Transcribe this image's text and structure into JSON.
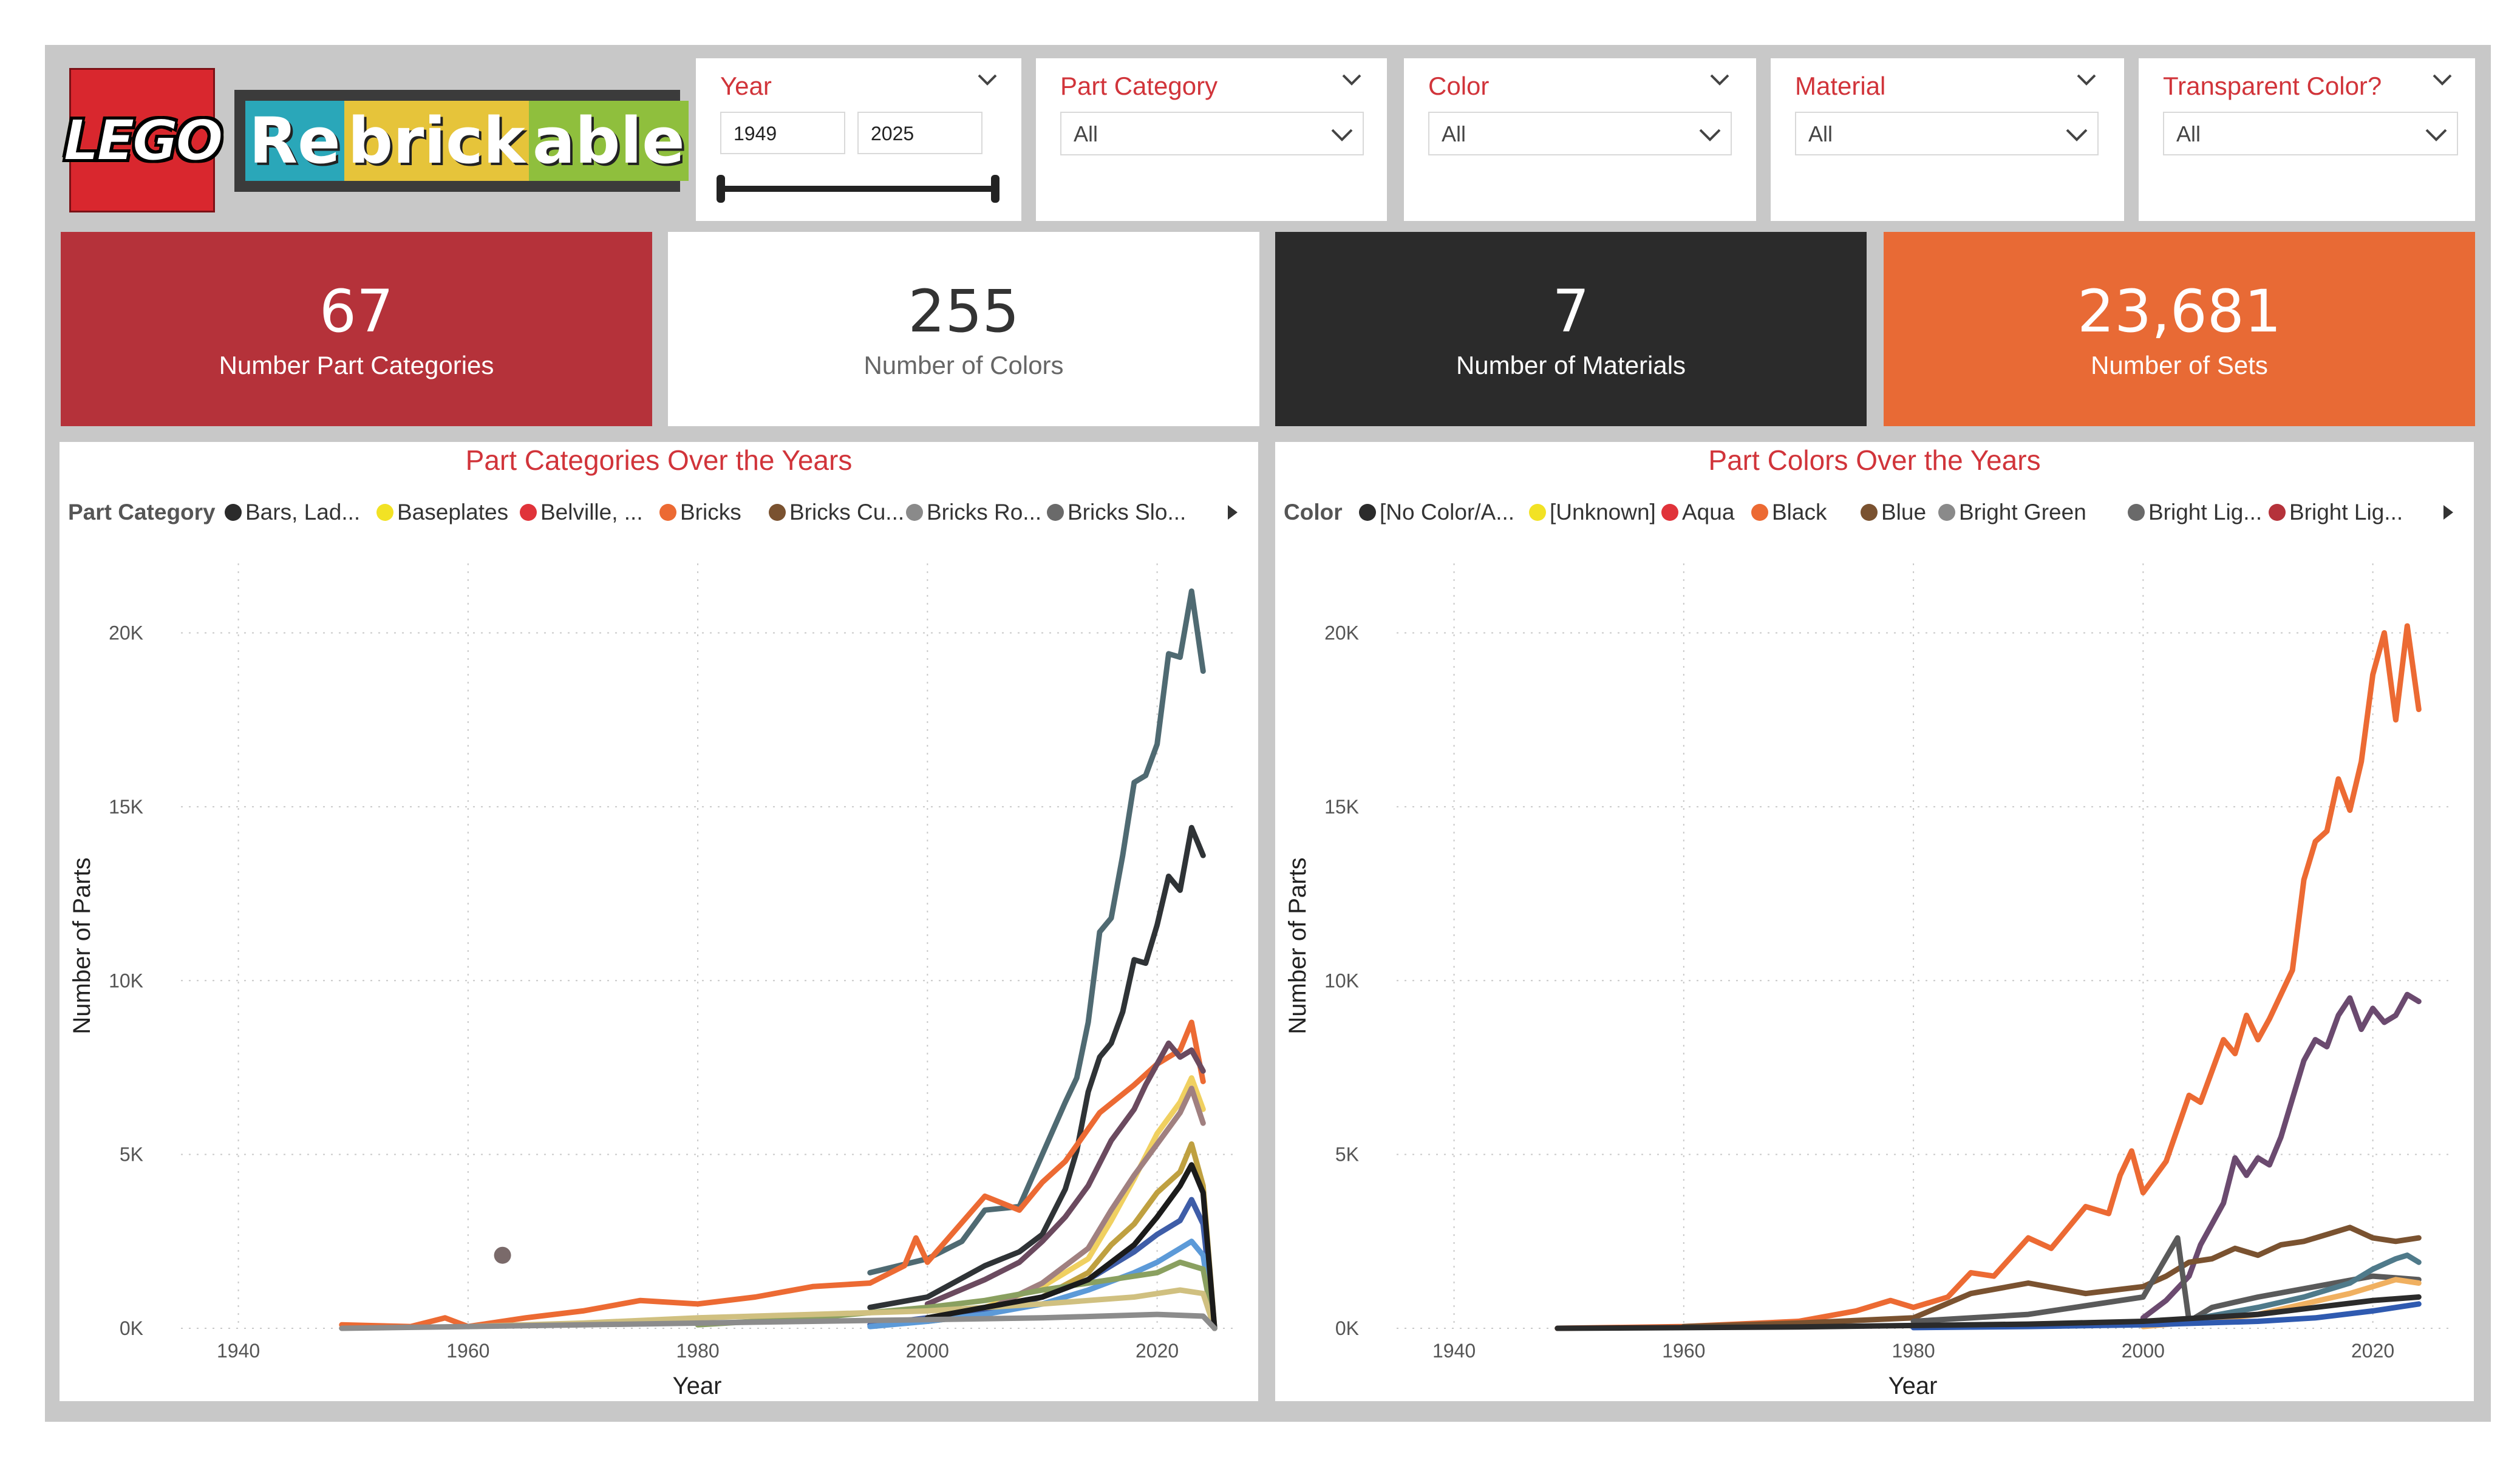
{
  "logos": {
    "lego_text": "LEGO",
    "rebrickable_parts": [
      "Re",
      "brick",
      "able"
    ]
  },
  "filters": {
    "year": {
      "title": "Year",
      "from": "1949",
      "to": "2025"
    },
    "part_category": {
      "title": "Part Category",
      "selected": "All"
    },
    "color": {
      "title": "Color",
      "selected": "All"
    },
    "material": {
      "title": "Material",
      "selected": "All"
    },
    "transparent": {
      "title": "Transparent Color?",
      "selected": "All"
    }
  },
  "kpis": [
    {
      "value": "67",
      "label": "Number Part Categories",
      "bg": "#b5323a",
      "fg": "#ffffff"
    },
    {
      "value": "255",
      "label": "Number of Colors",
      "bg": "#ffffff",
      "fg": "#333333"
    },
    {
      "value": "7",
      "label": "Number of Materials",
      "bg": "#2b2b2b",
      "fg": "#ffffff"
    },
    {
      "value": "23,681",
      "label": "Number of Sets",
      "bg": "#e86a35",
      "fg": "#ffffff"
    }
  ],
  "chart_data": [
    {
      "type": "line",
      "title": "Part Categories Over the Years",
      "legend_title": "Part Category",
      "legend": [
        {
          "name": "Bars, Lad...",
          "color": "#2b2b2b"
        },
        {
          "name": "Baseplates",
          "color": "#f2e224"
        },
        {
          "name": "Belville, ...",
          "color": "#e0333a"
        },
        {
          "name": "Bricks",
          "color": "#ec6a33"
        },
        {
          "name": "Bricks Cu...",
          "color": "#7a5230"
        },
        {
          "name": "Bricks Ro...",
          "color": "#8a8a8a"
        },
        {
          "name": "Bricks Slo...",
          "color": "#6a6a6a"
        }
      ],
      "xlabel": "Year",
      "ylabel": "Number of Parts",
      "xlim": [
        1935,
        2027
      ],
      "ylim": [
        0,
        22000
      ],
      "xticks": [
        1940,
        1960,
        1980,
        2000,
        2020
      ],
      "yticks": [
        0,
        5000,
        10000,
        15000,
        20000
      ],
      "ytick_labels": [
        "0K",
        "5K",
        "10K",
        "15K",
        "20K"
      ],
      "points": [
        {
          "x": 1963,
          "y": 2100,
          "color": "#7a6a6a"
        }
      ],
      "series": [
        {
          "color": "#4f6a72",
          "x": [
            1995,
            2000,
            2003,
            2005,
            2008,
            2010,
            2012,
            2013,
            2014,
            2015,
            2016,
            2017,
            2018,
            2019,
            2020,
            2021,
            2022,
            2023,
            2024
          ],
          "y": [
            1600,
            2000,
            2500,
            3400,
            3500,
            5000,
            6500,
            7200,
            8800,
            11400,
            11800,
            13600,
            15700,
            15900,
            16800,
            19400,
            19300,
            21200,
            18900
          ]
        },
        {
          "color": "#2f3336",
          "x": [
            1995,
            2000,
            2005,
            2008,
            2010,
            2012,
            2013,
            2014,
            2015,
            2016,
            2017,
            2018,
            2019,
            2020,
            2021,
            2022,
            2023,
            2024
          ],
          "y": [
            600,
            900,
            1800,
            2200,
            2700,
            4000,
            5100,
            6800,
            7800,
            8200,
            9100,
            10600,
            10500,
            11600,
            13000,
            12600,
            14400,
            13600
          ]
        },
        {
          "color": "#ec6a33",
          "x": [
            1949,
            1955,
            1958,
            1960,
            1965,
            1970,
            1975,
            1980,
            1985,
            1990,
            1995,
            1998,
            1999,
            2000,
            2005,
            2008,
            2010,
            2012,
            2015,
            2018,
            2020,
            2022,
            2023,
            2024
          ],
          "y": [
            100,
            50,
            300,
            50,
            300,
            500,
            800,
            700,
            900,
            1200,
            1300,
            1800,
            2600,
            1900,
            3800,
            3400,
            4200,
            4800,
            6200,
            7000,
            7600,
            8000,
            8800,
            7100
          ]
        },
        {
          "color": "#6b4a5f",
          "x": [
            2000,
            2005,
            2008,
            2010,
            2012,
            2014,
            2016,
            2018,
            2019,
            2020,
            2021,
            2022,
            2023,
            2024
          ],
          "y": [
            700,
            1400,
            1900,
            2500,
            3200,
            4100,
            5400,
            6300,
            7000,
            7600,
            8200,
            7800,
            8000,
            7400
          ]
        },
        {
          "color": "#f0d060",
          "x": [
            2000,
            2005,
            2010,
            2014,
            2016,
            2018,
            2020,
            2022,
            2023,
            2024
          ],
          "y": [
            300,
            600,
            1200,
            2000,
            3100,
            4300,
            5600,
            6500,
            7200,
            6300
          ]
        },
        {
          "color": "#a08080",
          "x": [
            2000,
            2005,
            2010,
            2014,
            2016,
            2018,
            2020,
            2022,
            2023,
            2024
          ],
          "y": [
            200,
            500,
            1300,
            2300,
            3400,
            4400,
            5300,
            6200,
            6900,
            5900
          ]
        },
        {
          "color": "#bfa040",
          "x": [
            2000,
            2005,
            2010,
            2014,
            2016,
            2018,
            2020,
            2022,
            2023,
            2024,
            2025
          ],
          "y": [
            200,
            400,
            900,
            1600,
            2400,
            3000,
            3900,
            4500,
            5300,
            4100,
            0
          ]
        },
        {
          "color": "#3e5da8",
          "x": [
            1995,
            2000,
            2005,
            2010,
            2014,
            2018,
            2020,
            2022,
            2023,
            2024,
            2025
          ],
          "y": [
            100,
            300,
            500,
            900,
            1400,
            2200,
            2700,
            3100,
            3700,
            3000,
            0
          ]
        },
        {
          "color": "#5c9ad8",
          "x": [
            1995,
            2000,
            2005,
            2010,
            2014,
            2018,
            2020,
            2022,
            2023,
            2024,
            2025
          ],
          "y": [
            50,
            200,
            400,
            700,
            1100,
            1600,
            1900,
            2300,
            2500,
            2100,
            0
          ]
        },
        {
          "color": "#8aa060",
          "x": [
            1980,
            1990,
            2000,
            2005,
            2010,
            2014,
            2018,
            2020,
            2022,
            2024,
            2025
          ],
          "y": [
            100,
            300,
            600,
            800,
            1100,
            1300,
            1500,
            1600,
            1900,
            1700,
            0
          ]
        },
        {
          "color": "#d0c080",
          "x": [
            1960,
            1970,
            1980,
            1990,
            2000,
            2010,
            2018,
            2022,
            2024,
            2025
          ],
          "y": [
            50,
            150,
            300,
            400,
            500,
            700,
            900,
            1100,
            1000,
            0
          ]
        },
        {
          "color": "#1b1b1b",
          "x": [
            2000,
            2005,
            2010,
            2014,
            2018,
            2020,
            2022,
            2023,
            2024,
            2025
          ],
          "y": [
            300,
            600,
            900,
            1400,
            2400,
            3200,
            4100,
            4700,
            3900,
            0
          ]
        },
        {
          "color": "#8c8c8c",
          "x": [
            1949,
            1960,
            1970,
            1980,
            1990,
            2000,
            2010,
            2020,
            2024,
            2025
          ],
          "y": [
            0,
            50,
            100,
            150,
            200,
            250,
            300,
            400,
            350,
            0
          ]
        }
      ]
    },
    {
      "type": "line",
      "title": "Part Colors Over the Years",
      "legend_title": "Color",
      "legend": [
        {
          "name": "[No Color/A...",
          "color": "#2b2b2b"
        },
        {
          "name": "[Unknown]",
          "color": "#f2e224"
        },
        {
          "name": "Aqua",
          "color": "#e0333a"
        },
        {
          "name": "Black",
          "color": "#ec6a33"
        },
        {
          "name": "Blue",
          "color": "#7a5230"
        },
        {
          "name": "Bright Green",
          "color": "#8a8a8a"
        },
        {
          "name": "Bright Lig...",
          "color": "#6a6a6a"
        },
        {
          "name": "Bright Lig...",
          "color": "#b5323a"
        }
      ],
      "xlabel": "Year",
      "ylabel": "Number of Parts",
      "xlim": [
        1935,
        2027
      ],
      "ylim": [
        0,
        22000
      ],
      "xticks": [
        1940,
        1960,
        1980,
        2000,
        2020
      ],
      "yticks": [
        0,
        5000,
        10000,
        15000,
        20000
      ],
      "ytick_labels": [
        "0K",
        "5K",
        "10K",
        "15K",
        "20K"
      ],
      "points": [],
      "series": [
        {
          "color": "#ec6a33",
          "x": [
            1949,
            1960,
            1970,
            1975,
            1978,
            1980,
            1983,
            1985,
            1987,
            1990,
            1992,
            1995,
            1997,
            1998,
            1999,
            2000,
            2002,
            2004,
            2005,
            2006,
            2007,
            2008,
            2009,
            2010,
            2011,
            2012,
            2013,
            2014,
            2015,
            2016,
            2017,
            2018,
            2019,
            2020,
            2021,
            2022,
            2023,
            2024
          ],
          "y": [
            0,
            50,
            200,
            500,
            800,
            600,
            900,
            1600,
            1500,
            2600,
            2300,
            3500,
            3300,
            4400,
            5100,
            3900,
            4800,
            6700,
            6500,
            7400,
            8300,
            7900,
            9000,
            8300,
            8900,
            9600,
            10300,
            12900,
            14000,
            14300,
            15800,
            14900,
            16300,
            18800,
            20000,
            17500,
            20200,
            17800
          ]
        },
        {
          "color": "#6b4a6f",
          "x": [
            2000,
            2002,
            2004,
            2005,
            2006,
            2007,
            2008,
            2009,
            2010,
            2011,
            2012,
            2013,
            2014,
            2015,
            2016,
            2017,
            2018,
            2019,
            2020,
            2021,
            2022,
            2023,
            2024
          ],
          "y": [
            300,
            800,
            1500,
            2400,
            3000,
            3600,
            4900,
            4400,
            4900,
            4700,
            5500,
            6600,
            7700,
            8300,
            8100,
            9000,
            9500,
            8600,
            9200,
            8800,
            9000,
            9600,
            9400
          ]
        },
        {
          "color": "#7a5230",
          "x": [
            1960,
            1970,
            1980,
            1985,
            1990,
            1995,
            2000,
            2002,
            2004,
            2006,
            2008,
            2010,
            2012,
            2014,
            2016,
            2018,
            2020,
            2022,
            2024
          ],
          "y": [
            50,
            150,
            300,
            1000,
            1300,
            1000,
            1200,
            1500,
            1900,
            2000,
            2300,
            2100,
            2400,
            2500,
            2700,
            2900,
            2600,
            2500,
            2600
          ]
        },
        {
          "color": "#5a5a5a",
          "x": [
            1980,
            1990,
            2000,
            2003,
            2004,
            2006,
            2010,
            2015,
            2020,
            2024
          ],
          "y": [
            200,
            400,
            900,
            2600,
            200,
            600,
            900,
            1200,
            1500,
            1400
          ]
        },
        {
          "color": "#4f7a8a",
          "x": [
            2000,
            2005,
            2010,
            2014,
            2018,
            2020,
            2022,
            2023,
            2024
          ],
          "y": [
            100,
            300,
            600,
            900,
            1300,
            1700,
            2000,
            2100,
            1900
          ]
        },
        {
          "color": "#f0b060",
          "x": [
            2000,
            2005,
            2010,
            2014,
            2018,
            2020,
            2022,
            2024
          ],
          "y": [
            50,
            200,
            400,
            700,
            1000,
            1200,
            1400,
            1300
          ]
        },
        {
          "color": "#2f5ab0",
          "x": [
            1980,
            1990,
            2000,
            2005,
            2010,
            2015,
            2020,
            2024
          ],
          "y": [
            20,
            50,
            100,
            150,
            200,
            300,
            500,
            700
          ]
        },
        {
          "color": "#2b2b2b",
          "x": [
            1949,
            1960,
            1970,
            1980,
            1990,
            2000,
            2010,
            2020,
            2024
          ],
          "y": [
            0,
            20,
            40,
            80,
            120,
            200,
            400,
            800,
            900
          ]
        }
      ]
    }
  ]
}
